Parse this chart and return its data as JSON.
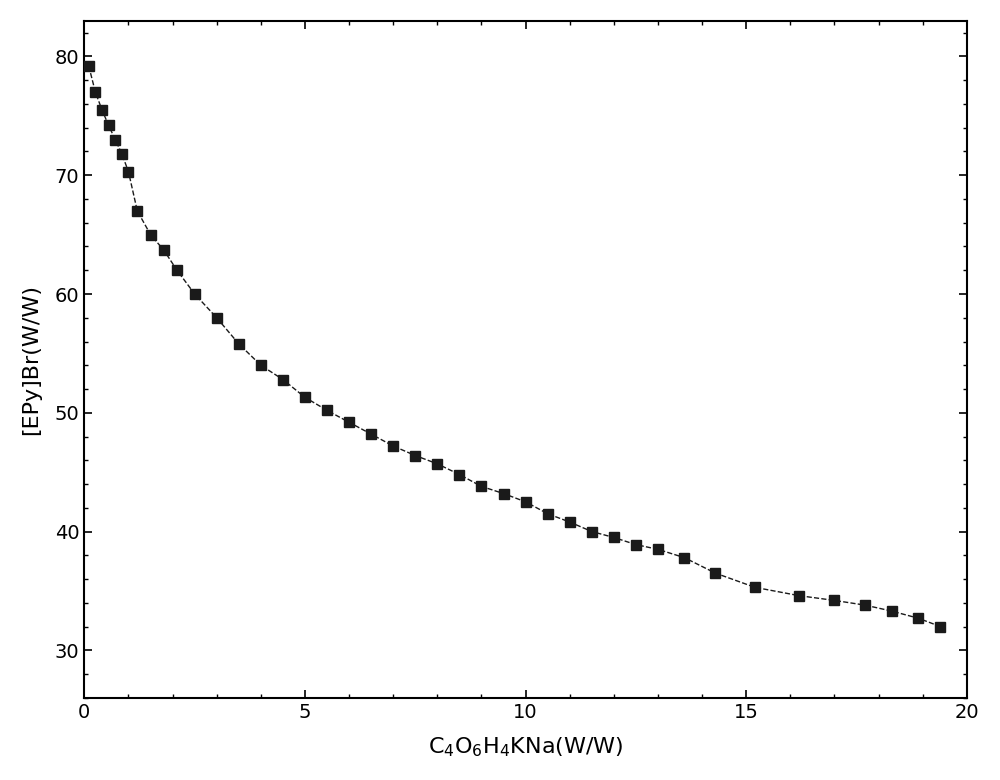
{
  "x": [
    0.1,
    0.25,
    0.4,
    0.55,
    0.7,
    0.85,
    1.0,
    1.2,
    1.5,
    1.8,
    2.1,
    2.5,
    3.0,
    3.5,
    4.0,
    4.5,
    5.0,
    5.5,
    6.0,
    6.5,
    7.0,
    7.5,
    8.0,
    8.5,
    9.0,
    9.5,
    10.0,
    10.5,
    11.0,
    11.5,
    12.0,
    12.5,
    13.0,
    13.6,
    14.3,
    15.2,
    16.2,
    17.0,
    17.7,
    18.3,
    18.9,
    19.4
  ],
  "y": [
    79.2,
    77.0,
    75.5,
    74.2,
    73.0,
    71.8,
    70.3,
    67.0,
    65.0,
    63.7,
    62.0,
    60.0,
    58.0,
    55.8,
    54.0,
    52.8,
    51.3,
    50.2,
    49.2,
    48.2,
    47.2,
    46.4,
    45.7,
    44.8,
    43.8,
    43.2,
    42.5,
    41.5,
    40.8,
    40.0,
    39.5,
    38.9,
    38.5,
    37.8,
    36.5,
    35.3,
    34.6,
    34.2,
    33.8,
    33.3,
    32.7,
    32.0
  ],
  "xlabel": "C$_4$O$_6$H$_4$KNa(W/W)",
  "ylabel": "[EPy]Br(W/W)",
  "xlim": [
    0,
    20
  ],
  "ylim": [
    26,
    83
  ],
  "xticks": [
    0,
    5,
    10,
    15,
    20
  ],
  "yticks": [
    30,
    40,
    50,
    60,
    70,
    80
  ],
  "marker": "s",
  "marker_color": "#1a1a1a",
  "marker_size": 7,
  "line_style": "--",
  "line_color": "#1a1a1a",
  "line_width": 1.0,
  "background_color": "#ffffff",
  "label_fontsize": 16,
  "tick_fontsize": 14
}
